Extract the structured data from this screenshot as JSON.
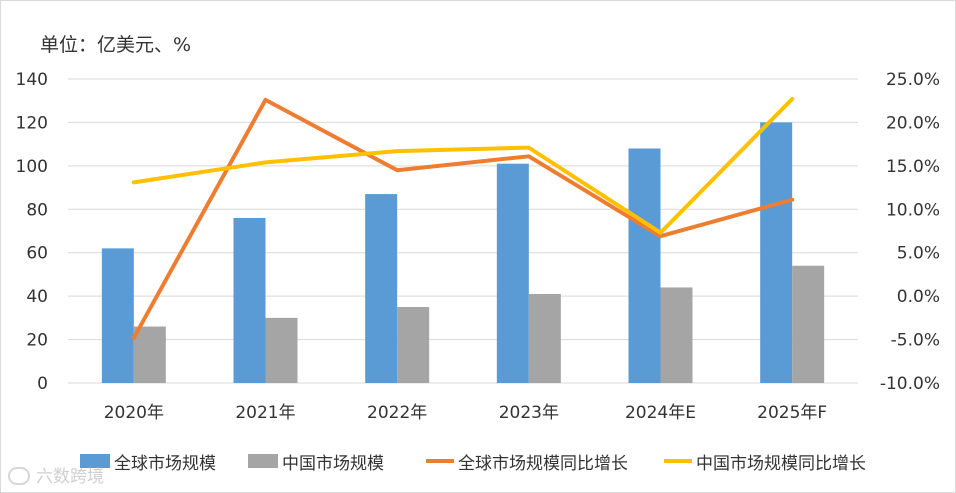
{
  "unit_label": "单位：亿美元、%",
  "watermark_text": "六数跨境",
  "chart_data": {
    "type": "bar",
    "categories": [
      "2020年",
      "2021年",
      "2022年",
      "2023年",
      "2024年E",
      "2025年F"
    ],
    "series": [
      {
        "name": "全球市场规模",
        "type": "bar",
        "axis": "left",
        "color": "#5b9bd5",
        "values": [
          62,
          76,
          87,
          101,
          108,
          120
        ]
      },
      {
        "name": "中国市场规模",
        "type": "bar",
        "axis": "left",
        "color": "#a5a5a5",
        "values": [
          26,
          30,
          35,
          41,
          44,
          54
        ]
      },
      {
        "name": "全球市场规模同比增长",
        "type": "line",
        "axis": "right",
        "color": "#ed7d31",
        "values": [
          -4.8,
          22.6,
          14.5,
          16.1,
          6.9,
          11.1
        ]
      },
      {
        "name": "中国市场规模同比增长",
        "type": "line",
        "axis": "right",
        "color": "#ffc000",
        "values": [
          13.1,
          15.4,
          16.7,
          17.1,
          7.3,
          22.7
        ]
      }
    ],
    "y_left": {
      "min": 0,
      "max": 140,
      "step": 20,
      "ticks": [
        "0",
        "20",
        "40",
        "60",
        "80",
        "100",
        "120",
        "140"
      ]
    },
    "y_right": {
      "min": -10,
      "max": 25,
      "step": 5,
      "ticks": [
        "-10.0%",
        "-5.0%",
        "0.0%",
        "5.0%",
        "10.0%",
        "15.0%",
        "20.0%",
        "25.0%"
      ]
    },
    "grid": true,
    "legend_position": "bottom"
  }
}
